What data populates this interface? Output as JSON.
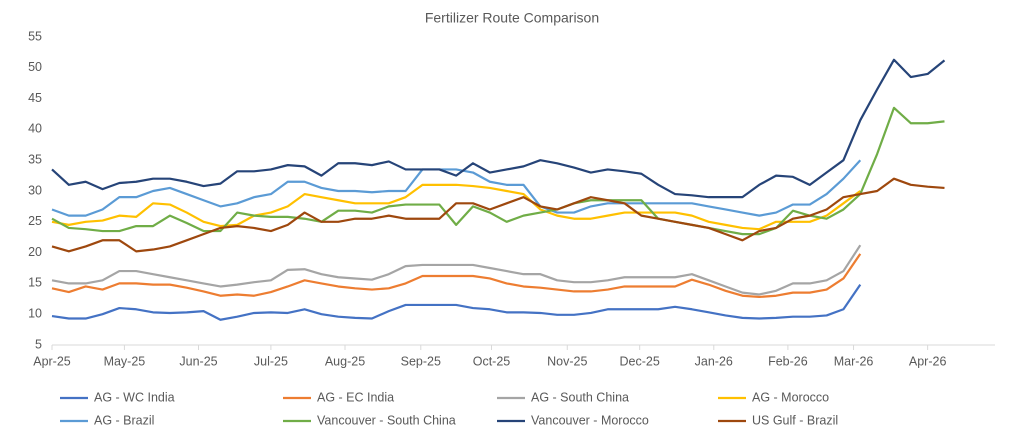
{
  "chart_data": {
    "type": "line",
    "title": "Fertilizer Route Comparison",
    "x": [
      0,
      1,
      2,
      3,
      4,
      5,
      6,
      7,
      8,
      9,
      10,
      11,
      12,
      13,
      14,
      15,
      16,
      17,
      18,
      19,
      20,
      21,
      22,
      23,
      24,
      25,
      26,
      27,
      28,
      29,
      30,
      31,
      32,
      33,
      34,
      35,
      36,
      37,
      38,
      39,
      40,
      41,
      42,
      43,
      44,
      45,
      46,
      47,
      48,
      49,
      50,
      51,
      52,
      53
    ],
    "xlim": [
      0,
      56
    ],
    "xticks": [
      {
        "value": 0,
        "label": "Apr-25"
      },
      {
        "value": 4.3,
        "label": "May-25"
      },
      {
        "value": 8.7,
        "label": "Jun-25"
      },
      {
        "value": 13,
        "label": "Jul-25"
      },
      {
        "value": 17.4,
        "label": "Aug-25"
      },
      {
        "value": 21.9,
        "label": "Sep-25"
      },
      {
        "value": 26.1,
        "label": "Oct-25"
      },
      {
        "value": 30.6,
        "label": "Nov-25"
      },
      {
        "value": 34.9,
        "label": "Dec-25"
      },
      {
        "value": 39.3,
        "label": "Jan-26"
      },
      {
        "value": 43.7,
        "label": "Feb-26"
      },
      {
        "value": 47.6,
        "label": "Mar-26"
      },
      {
        "value": 52,
        "label": "Apr-26"
      }
    ],
    "ylim": [
      5,
      55
    ],
    "yticks": [
      5,
      10,
      15,
      20,
      25,
      30,
      35,
      40,
      45,
      50,
      55
    ],
    "grid": false,
    "series": [
      {
        "name": "AG - WC India",
        "color": "#4472c4",
        "values": [
          9.7,
          9.3,
          9.3,
          10,
          11,
          10.8,
          10.3,
          10.2,
          10.3,
          10.5,
          9.1,
          9.6,
          10.2,
          10.3,
          10.2,
          10.8,
          10,
          9.6,
          9.4,
          9.3,
          10.5,
          11.5,
          11.5,
          11.5,
          11.5,
          11,
          10.8,
          10.3,
          10.3,
          10.2,
          9.9,
          9.9,
          10.2,
          10.8,
          10.8,
          10.8,
          10.8,
          11.2,
          10.8,
          10.3,
          9.8,
          9.4,
          9.3,
          9.4,
          9.6,
          9.6,
          9.8,
          10.8,
          14.8,
          null,
          null,
          null,
          null,
          null
        ]
      },
      {
        "name": "AG - EC India",
        "color": "#ed7d31",
        "values": [
          14.2,
          13.6,
          14.5,
          14,
          15,
          15,
          14.8,
          14.8,
          14.3,
          13.7,
          13,
          13.2,
          13,
          13.6,
          14.5,
          15.5,
          15,
          14.5,
          14.2,
          14,
          14.2,
          15,
          16.2,
          16.2,
          16.2,
          16.2,
          15.8,
          15,
          14.5,
          14.3,
          14,
          13.7,
          13.7,
          14,
          14.5,
          14.5,
          14.5,
          14.5,
          15.6,
          14.8,
          13.8,
          13,
          12.8,
          13,
          13.5,
          13.5,
          14,
          15.8,
          19.8,
          null,
          null,
          null,
          null,
          null
        ]
      },
      {
        "name": "AG - South China",
        "color": "#a5a5a5",
        "values": [
          15.5,
          15,
          15,
          15.5,
          17,
          17,
          16.5,
          16,
          15.5,
          15,
          14.5,
          14.8,
          15.2,
          15.5,
          17.2,
          17.3,
          16.5,
          16,
          15.8,
          15.6,
          16.5,
          17.8,
          18,
          18,
          18,
          18,
          17.5,
          17,
          16.5,
          16.5,
          15.5,
          15.2,
          15.2,
          15.5,
          16,
          16,
          16,
          16,
          16.5,
          15.5,
          14.5,
          13.5,
          13.2,
          13.8,
          15,
          15,
          15.5,
          17,
          21.2,
          null,
          null,
          null,
          null,
          null
        ]
      },
      {
        "name": "AG - Morocco",
        "color": "#ffc000",
        "values": [
          25,
          24.5,
          25,
          25.2,
          26,
          25.8,
          28,
          27.8,
          26.5,
          25,
          24.3,
          24.5,
          26,
          26.5,
          27.5,
          29.5,
          29,
          28.5,
          28,
          28,
          28,
          29,
          31,
          31,
          31,
          30.8,
          30.5,
          30,
          29.5,
          27,
          26,
          25.5,
          25.5,
          26,
          26.5,
          26.5,
          26.5,
          26.5,
          26,
          25,
          24.5,
          24,
          23.8,
          25,
          25,
          25,
          26,
          28,
          30,
          null,
          null,
          null,
          null,
          null
        ]
      },
      {
        "name": "AG - Brazil",
        "color": "#5b9bd5",
        "values": [
          27,
          26,
          26,
          27,
          29,
          29,
          30,
          30.5,
          29.5,
          28.5,
          27.5,
          28,
          29,
          29.5,
          31.5,
          31.5,
          30.5,
          30,
          30,
          29.8,
          30,
          30,
          33.5,
          33.5,
          33.5,
          33,
          31.5,
          31,
          31,
          27.5,
          26.5,
          26.5,
          27.5,
          28,
          28,
          28,
          28,
          28,
          28,
          27.5,
          27,
          26.5,
          26,
          26.5,
          27.8,
          27.8,
          29.5,
          32,
          35,
          null,
          null,
          null,
          null,
          null
        ]
      },
      {
        "name": "Vancouver - South China",
        "color": "#70ad47",
        "values": [
          25.5,
          24,
          23.8,
          23.5,
          23.5,
          24.3,
          24.3,
          26,
          24.8,
          23.5,
          23.5,
          26.5,
          26,
          25.8,
          25.8,
          25.5,
          25,
          26.8,
          26.8,
          26.5,
          27.5,
          27.8,
          27.8,
          27.8,
          24.5,
          27.5,
          26.5,
          25,
          26,
          26.5,
          27,
          28,
          28.5,
          28.5,
          28.5,
          28.5,
          25.5,
          25,
          24.5,
          24,
          23.5,
          23,
          23,
          24,
          26.8,
          26,
          25.5,
          27,
          29.5,
          36,
          43.5,
          41,
          41,
          41.3
        ]
      },
      {
        "name": "Vancouver - Morocco",
        "color": "#264478",
        "values": [
          33.5,
          31,
          31.5,
          30.3,
          31.3,
          31.5,
          32,
          32,
          31.5,
          30.8,
          31.2,
          33.2,
          33.2,
          33.5,
          34.2,
          34,
          32.5,
          34.5,
          34.5,
          34.2,
          34.8,
          33.5,
          33.5,
          33.5,
          32.5,
          34.5,
          33,
          33.5,
          34,
          35,
          34.5,
          33.8,
          33,
          33.5,
          33.2,
          32.8,
          31,
          29.5,
          29.3,
          29,
          29,
          29,
          31,
          32.5,
          32.3,
          31,
          33,
          35,
          41.5,
          46.5,
          51.3,
          48.5,
          49,
          51.2
        ]
      },
      {
        "name": "US Gulf - Brazil",
        "color": "#9e480e",
        "values": [
          21,
          20.2,
          21,
          22,
          22,
          20.2,
          20.5,
          21,
          22,
          23,
          24,
          24.3,
          24,
          23.5,
          24.5,
          26.5,
          25,
          25,
          25.5,
          25.5,
          26,
          25.5,
          25.5,
          25.5,
          28,
          28,
          27,
          28,
          29,
          27.5,
          27,
          28,
          29,
          28.5,
          28,
          26,
          25.5,
          25,
          24.5,
          24,
          23,
          22,
          23.5,
          24,
          25.5,
          26,
          27,
          29,
          29.5,
          30,
          32,
          31,
          30.7,
          30.5
        ]
      }
    ]
  }
}
